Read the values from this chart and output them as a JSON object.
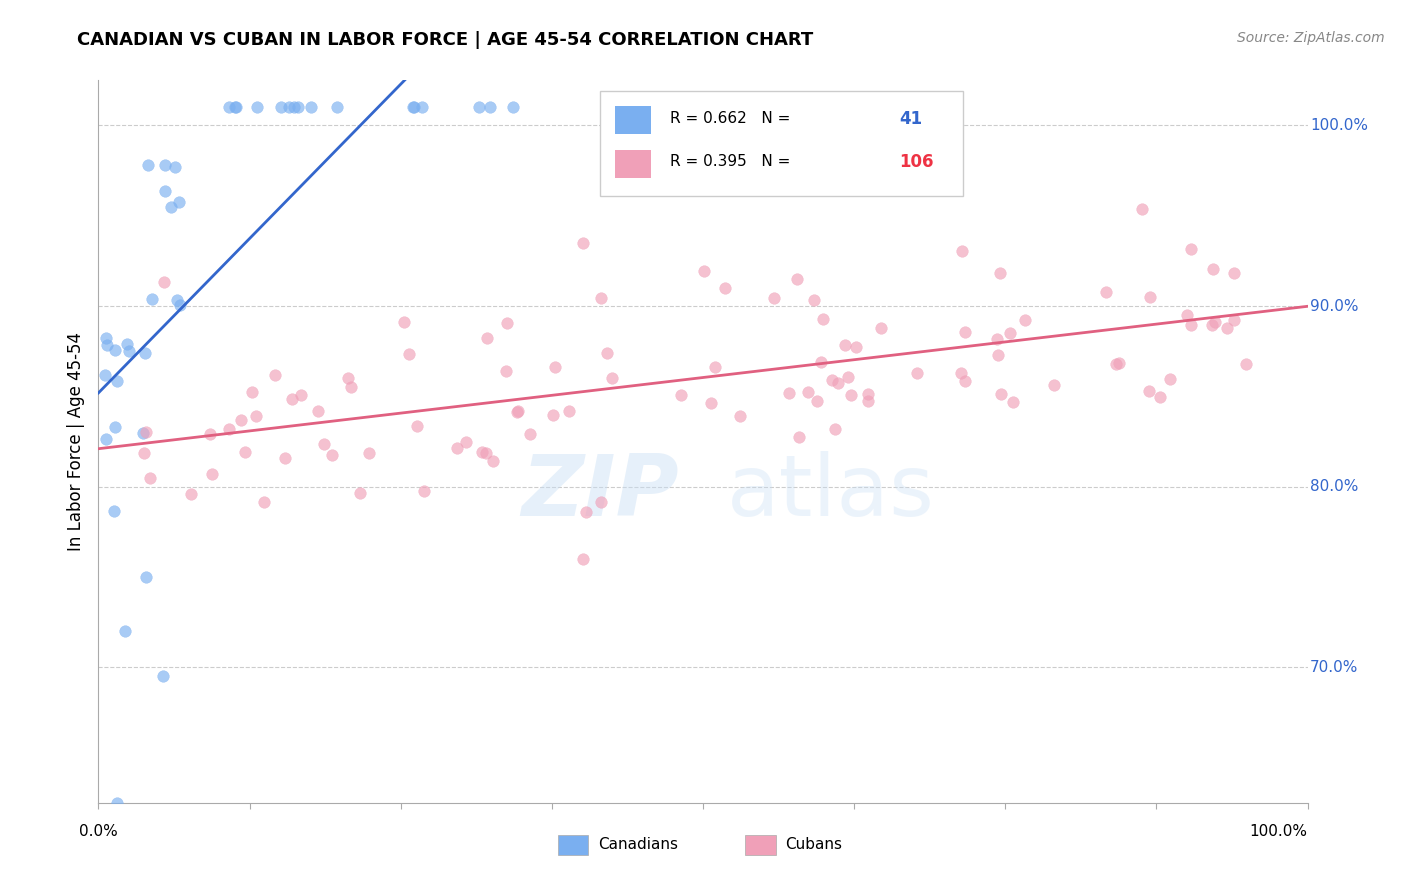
{
  "title": "CANADIAN VS CUBAN IN LABOR FORCE | AGE 45-54 CORRELATION CHART",
  "source": "Source: ZipAtlas.com",
  "ylabel": "In Labor Force | Age 45-54",
  "x_range": [
    0.0,
    1.0
  ],
  "y_range": [
    0.625,
    1.025
  ],
  "y_ticks": [
    0.7,
    0.8,
    0.9,
    1.0
  ],
  "y_tick_labels": [
    "70.0%",
    "80.0%",
    "90.0%",
    "100.0%"
  ],
  "canadian_color": "#7aaff0",
  "cuban_color": "#f0a0b8",
  "canadian_line_color": "#3366cc",
  "cuban_line_color": "#e06080",
  "canadian_R": 0.662,
  "canadian_N": 41,
  "cuban_R": 0.395,
  "cuban_N": 106,
  "watermark_zip": "ZIP",
  "watermark_atlas": "atlas",
  "legend_text_color": "#3366cc",
  "legend_N_canadian_color": "#3366cc",
  "legend_N_cuban_color": "#ee3344"
}
